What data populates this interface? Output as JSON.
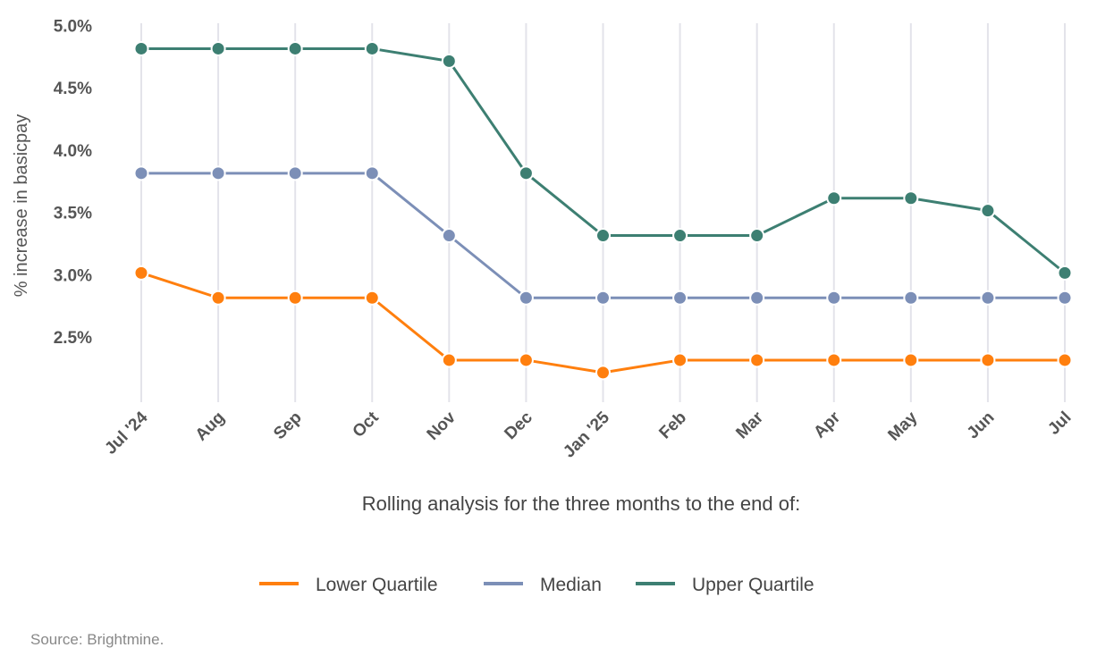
{
  "chart_data": {
    "type": "line",
    "categories": [
      "Jul '24",
      "Aug",
      "Sep",
      "Oct",
      "Nov",
      "Dec",
      "Jan '25",
      "Feb",
      "Mar",
      "Apr",
      "May",
      "Jun",
      "Jul"
    ],
    "series": [
      {
        "name": "Lower Quartile",
        "color": "#ff7f0e",
        "values": [
          3.1,
          2.9,
          2.9,
          2.9,
          2.4,
          2.4,
          2.3,
          2.4,
          2.4,
          2.4,
          2.4,
          2.4,
          2.4
        ]
      },
      {
        "name": "Median",
        "color": "#7c8fb7",
        "values": [
          3.9,
          3.9,
          3.9,
          3.9,
          3.4,
          2.9,
          2.9,
          2.9,
          2.9,
          2.9,
          2.9,
          2.9,
          2.9
        ]
      },
      {
        "name": "Upper Quartile",
        "color": "#3d7f72",
        "values": [
          4.9,
          4.9,
          4.9,
          4.9,
          4.8,
          3.9,
          3.4,
          3.4,
          3.4,
          3.7,
          3.7,
          3.6,
          3.1
        ]
      }
    ],
    "yticks": [
      "5.0%",
      "4.5%",
      "4.0%",
      "3.5%",
      "3.0%",
      "2.5%"
    ],
    "ytick_values": [
      5.0,
      4.5,
      4.0,
      3.5,
      3.0,
      2.5
    ],
    "ylim": [
      2.1,
      5.0
    ],
    "ylabel": "% increase in basicpay",
    "xlabel": "Rolling analysis for the three months to the end of:",
    "grid": "vertical",
    "legend_position": "bottom"
  },
  "source": "Source: Brightmine."
}
